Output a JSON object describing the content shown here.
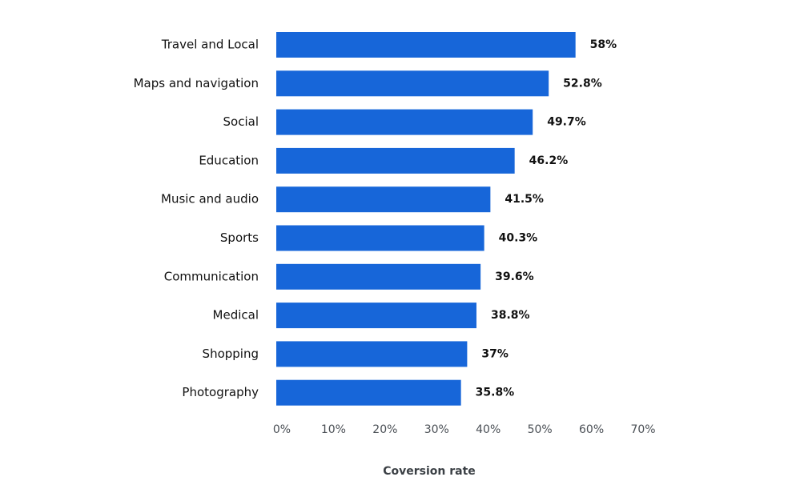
{
  "chart_data": {
    "type": "hbar",
    "categories": [
      "Travel and Local",
      "Maps and navigation",
      "Social",
      "Education",
      "Music and audio",
      "Sports",
      "Communication",
      "Medical",
      "Shopping",
      "Photography"
    ],
    "values": [
      58,
      52.8,
      49.7,
      46.2,
      41.5,
      40.3,
      39.6,
      38.8,
      37,
      35.8
    ],
    "value_labels": [
      "58%",
      "52.8%",
      "49.7%",
      "46.2%",
      "41.5%",
      "40.3%",
      "39.6%",
      "38.8%",
      "37%",
      "35.8%"
    ],
    "color": "#1766d9",
    "xlim": [
      0,
      70
    ],
    "xticks": [
      {
        "value": 0,
        "label": "0%"
      },
      {
        "value": 10,
        "label": "10%"
      },
      {
        "value": 20,
        "label": "20%"
      },
      {
        "value": 30,
        "label": "30%"
      },
      {
        "value": 40,
        "label": "40%"
      },
      {
        "value": 50,
        "label": "50%"
      },
      {
        "value": 60,
        "label": "60%"
      },
      {
        "value": 70,
        "label": "70%"
      }
    ],
    "x_label": "Coversion rate"
  }
}
